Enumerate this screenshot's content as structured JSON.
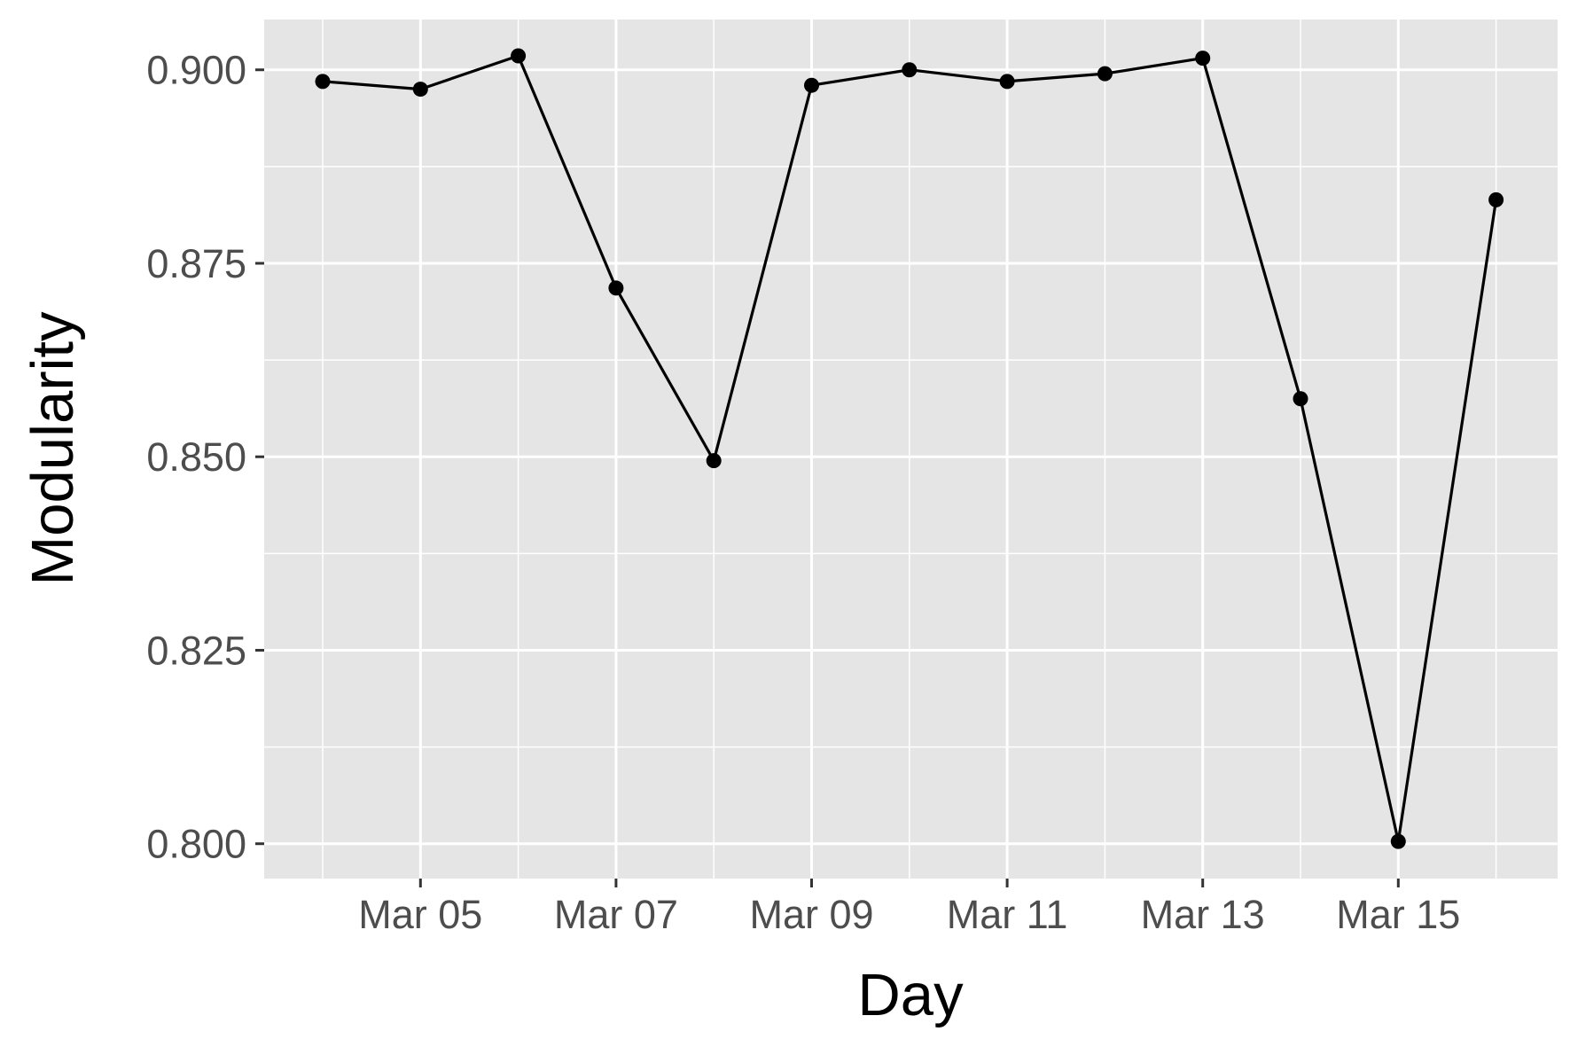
{
  "chart_data": {
    "type": "line",
    "title": "",
    "xlabel": "Day",
    "ylabel": "Modularity",
    "x": [
      "Mar 04",
      "Mar 05",
      "Mar 06",
      "Mar 07",
      "Mar 08",
      "Mar 09",
      "Mar 10",
      "Mar 11",
      "Mar 12",
      "Mar 13",
      "Mar 14",
      "Mar 15",
      "Mar 16"
    ],
    "values": [
      0.8985,
      0.8975,
      0.9018,
      0.8718,
      0.8495,
      0.898,
      0.9,
      0.8985,
      0.8995,
      0.9015,
      0.8575,
      0.8003,
      0.8832
    ],
    "x_ticks": [
      "Mar 05",
      "Mar 07",
      "Mar 09",
      "Mar 11",
      "Mar 13",
      "Mar 15"
    ],
    "y_ticks": [
      "0.800",
      "0.825",
      "0.850",
      "0.875",
      "0.900"
    ],
    "ylim": [
      0.7955,
      0.9065
    ],
    "grid": true,
    "colors": {
      "panel_background": "#e5e5e5",
      "grid": "#ffffff",
      "series": "#000000",
      "tick_text": "#4d4d4d",
      "title_text": "#000000"
    }
  }
}
